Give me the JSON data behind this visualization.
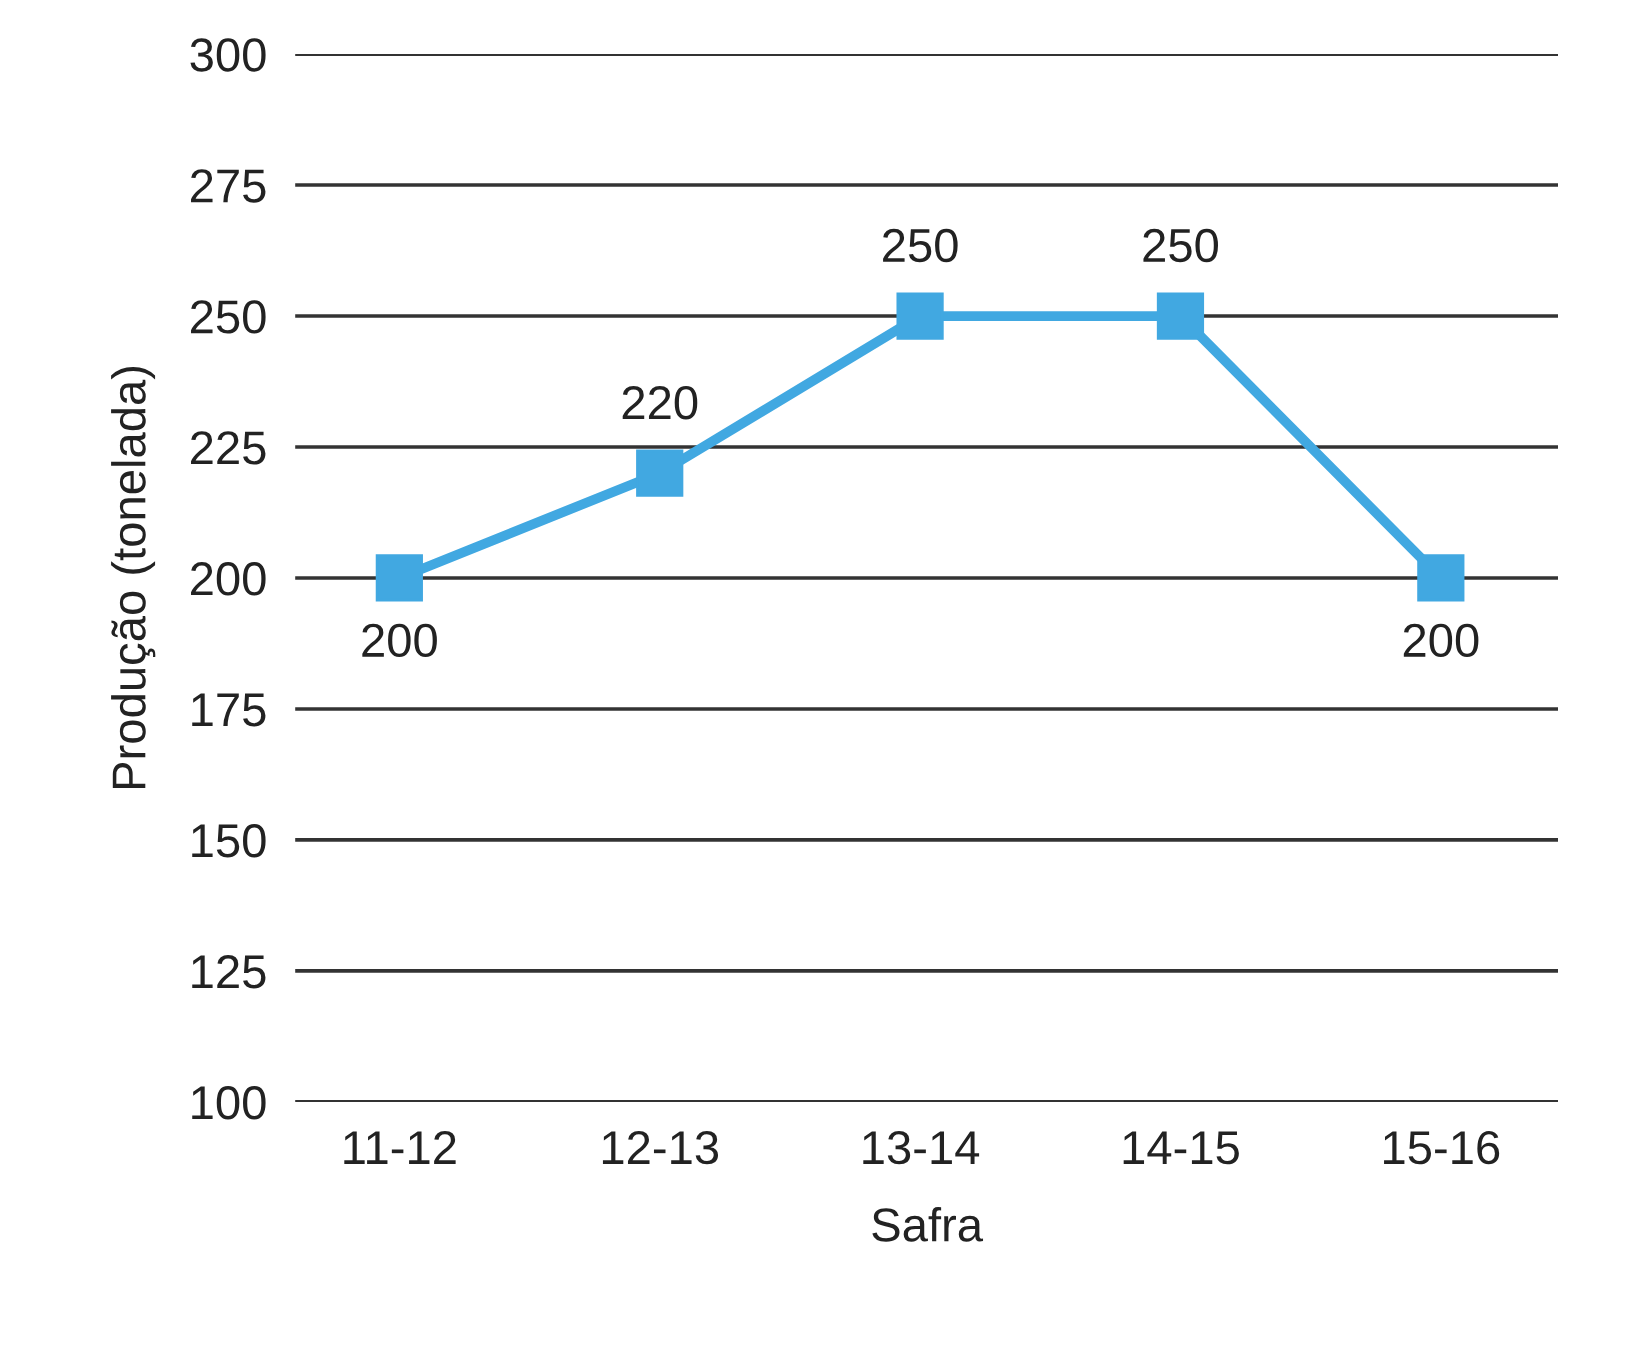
{
  "chart_data": {
    "type": "line",
    "xlabel": "Safra",
    "ylabel": "Produção (tonelada)",
    "categories": [
      "11-12",
      "12-13",
      "13-14",
      "14-15",
      "15-16"
    ],
    "series": [
      {
        "color": "#41a8e1",
        "values": [
          200,
          220,
          250,
          250,
          200
        ]
      }
    ],
    "ylim": [
      100,
      300
    ],
    "yticks": [
      100,
      125,
      150,
      175,
      200,
      225,
      250,
      275,
      300
    ],
    "grid": "y",
    "marker": "square",
    "line_style": "solid",
    "data_labels": true
  }
}
